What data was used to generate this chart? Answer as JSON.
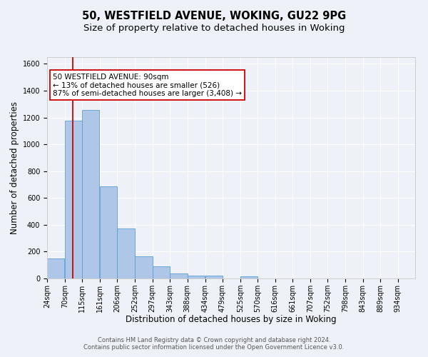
{
  "title": "50, WESTFIELD AVENUE, WOKING, GU22 9PG",
  "subtitle": "Size of property relative to detached houses in Woking",
  "xlabel": "Distribution of detached houses by size in Woking",
  "ylabel": "Number of detached properties",
  "bin_labels": [
    "24sqm",
    "70sqm",
    "115sqm",
    "161sqm",
    "206sqm",
    "252sqm",
    "297sqm",
    "343sqm",
    "388sqm",
    "434sqm",
    "479sqm",
    "525sqm",
    "570sqm",
    "616sqm",
    "661sqm",
    "707sqm",
    "752sqm",
    "798sqm",
    "843sqm",
    "889sqm",
    "934sqm"
  ],
  "bar_values": [
    150,
    1175,
    1255,
    685,
    375,
    165,
    90,
    35,
    20,
    20,
    0,
    15,
    0,
    0,
    0,
    0,
    0,
    0,
    0,
    0,
    0
  ],
  "bar_color": "#aec6e8",
  "bar_edge_color": "#5a9fd4",
  "red_line_x": 90,
  "bin_edges": [
    24,
    70,
    115,
    161,
    206,
    252,
    297,
    343,
    388,
    434,
    479,
    525,
    570,
    616,
    661,
    707,
    752,
    798,
    843,
    889,
    934
  ],
  "bin_width": 45,
  "annotation_line1": "50 WESTFIELD AVENUE: 90sqm",
  "annotation_line2": "← 13% of detached houses are smaller (526)",
  "annotation_line3": "87% of semi-detached houses are larger (3,408) →",
  "annotation_box_color": "#ffffff",
  "annotation_box_edge": "#cc0000",
  "footnote1": "Contains HM Land Registry data © Crown copyright and database right 2024.",
  "footnote2": "Contains public sector information licensed under the Open Government Licence v3.0.",
  "ylim": [
    0,
    1650
  ],
  "yticks": [
    0,
    200,
    400,
    600,
    800,
    1000,
    1200,
    1400,
    1600
  ],
  "background_color": "#eef2f8",
  "grid_color": "#ffffff",
  "title_fontsize": 10.5,
  "subtitle_fontsize": 9.5,
  "axis_label_fontsize": 8.5,
  "tick_fontsize": 7,
  "footnote_fontsize": 6,
  "annotation_fontsize": 7.5
}
